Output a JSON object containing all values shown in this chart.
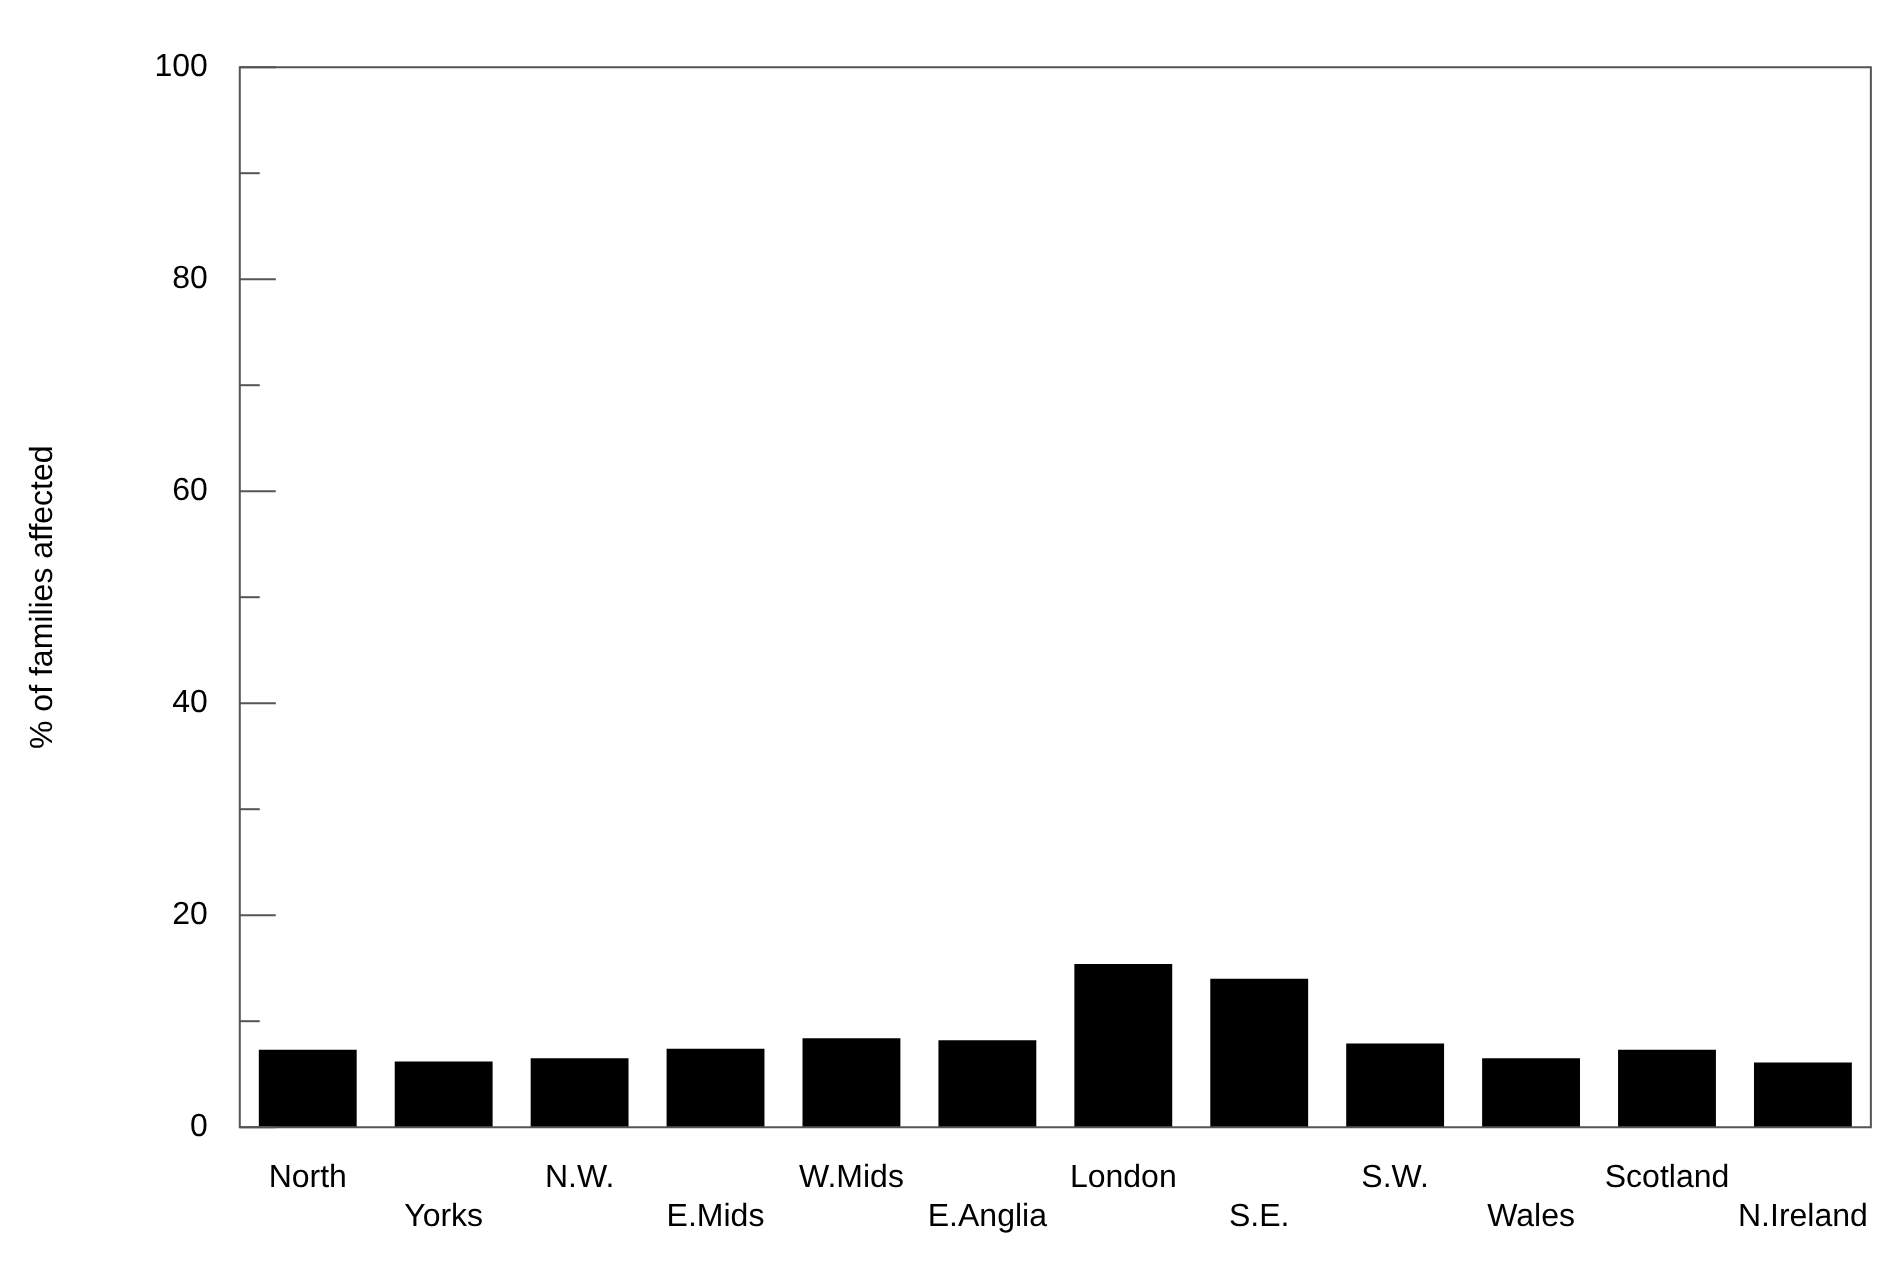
{
  "chart_data": {
    "type": "bar",
    "ylabel": "% of families affected",
    "categories": [
      "North",
      "Yorks",
      "N.W.",
      "E.Mids",
      "W.Mids",
      "E.Anglia",
      "London",
      "S.E.",
      "S.W.",
      "Wales",
      "Scotland",
      "N.Ireland"
    ],
    "values": [
      7.3,
      6.2,
      6.5,
      7.4,
      8.4,
      8.2,
      15.4,
      14.0,
      7.9,
      6.5,
      7.3,
      6.1
    ],
    "color": "#000000",
    "ylim": [
      0,
      100
    ],
    "yticks": [
      0,
      {
        "value": 10,
        "label": null
      },
      20,
      {
        "value": 30,
        "label": null
      },
      40,
      {
        "value": 50,
        "label": null
      },
      60,
      {
        "value": 70,
        "label": null
      },
      80,
      {
        "value": 90,
        "label": null
      },
      100
    ],
    "grid": false,
    "legend": false
  }
}
